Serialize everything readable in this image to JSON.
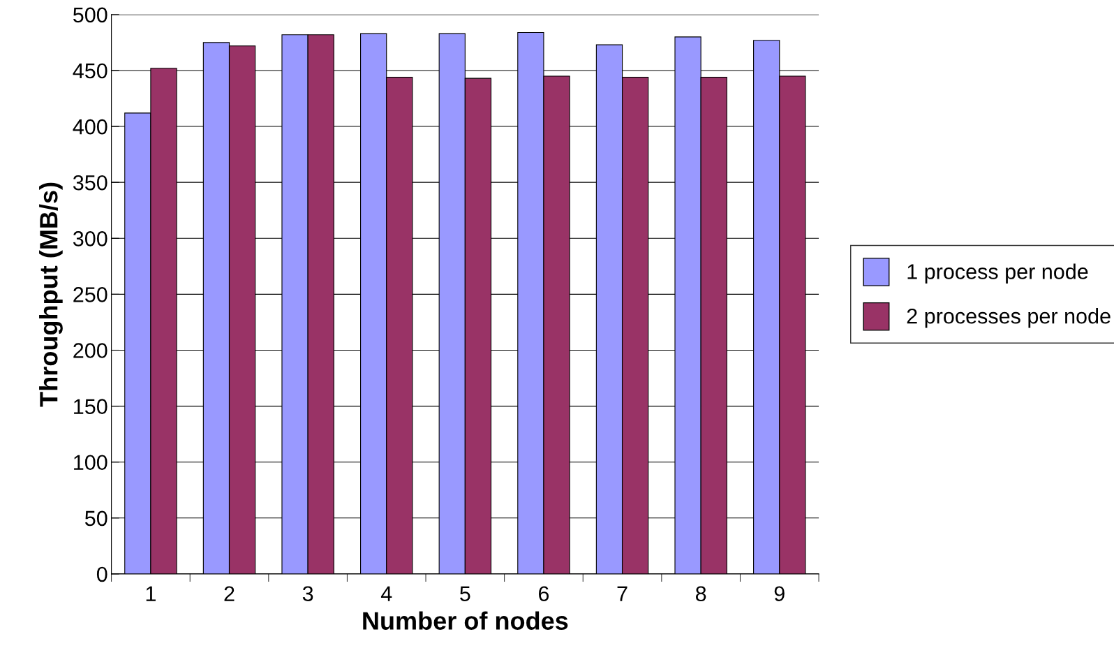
{
  "chart_data": {
    "type": "bar",
    "xlabel": "Number of nodes",
    "ylabel": "Throughput (MB/s)",
    "categories": [
      "1",
      "2",
      "3",
      "4",
      "5",
      "6",
      "7",
      "8",
      "9"
    ],
    "series": [
      {
        "name": "1 process per node",
        "color": "#9999ff",
        "values": [
          412,
          475,
          482,
          483,
          483,
          484,
          473,
          480,
          477
        ]
      },
      {
        "name": "2 processes per node",
        "color": "#993366",
        "values": [
          452,
          472,
          482,
          444,
          443,
          445,
          444,
          444,
          445
        ]
      }
    ],
    "ylim": [
      0,
      500
    ],
    "yticks": [
      0,
      50,
      100,
      150,
      200,
      250,
      300,
      350,
      400,
      450,
      500
    ],
    "grid": "y",
    "legend": "right"
  }
}
